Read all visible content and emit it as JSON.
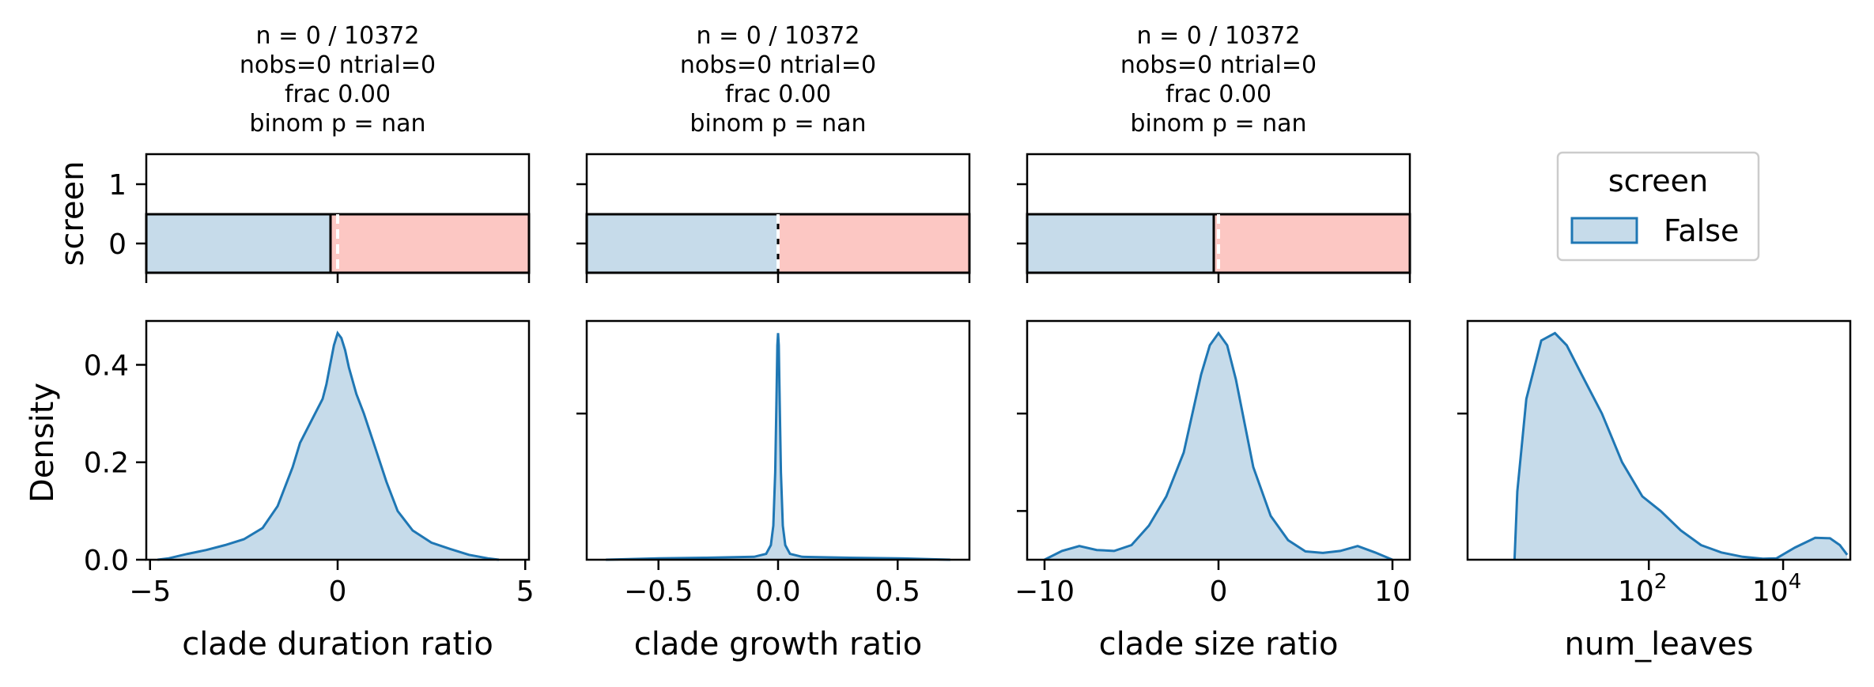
{
  "colors": {
    "kde_line": "#1f77b4",
    "kde_fill": "#c6dbea",
    "bar_observed": "#c6dbea",
    "bar_null": "#fcc7c3",
    "axis": "#000000",
    "null_marker": "#ffffff"
  },
  "figure": {
    "top_row_ylabel": "screen",
    "bottom_row_ylabel": "Density",
    "top_row_yticks": [
      "1",
      "0"
    ],
    "bottom_row_yticks": [
      "0.4",
      "0.2",
      "0.0"
    ]
  },
  "legend": {
    "title": "screen",
    "entries": [
      {
        "label": "False",
        "swatch_icon": "legend-swatch-icon"
      }
    ]
  },
  "chart_data": [
    {
      "type": "bar",
      "panel": "top-1",
      "title_lines": [
        "n = 0 / 10372",
        "nobs=0 ntrial=0",
        "frac 0.00",
        "binom p = nan"
      ],
      "xlim": [
        -5.1,
        5.1
      ],
      "ylabel": "screen",
      "yticks": [
        1,
        0
      ],
      "ylim": [
        -0.5,
        1.5
      ],
      "split_x": -0.2,
      "null_x": 0.0,
      "bar_y_range": [
        -0.5,
        0.5
      ]
    },
    {
      "type": "bar",
      "panel": "top-2",
      "title_lines": [
        "n = 0 / 10372",
        "nobs=0 ntrial=0",
        "frac 0.00",
        "binom p = nan"
      ],
      "xlim": [
        -0.8,
        0.8
      ],
      "ylim": [
        -0.5,
        1.5
      ],
      "split_x": 0.0,
      "null_x": 0.0,
      "bar_y_range": [
        -0.5,
        0.5
      ]
    },
    {
      "type": "bar",
      "panel": "top-3",
      "title_lines": [
        "n = 0 / 10372",
        "nobs=0 ntrial=0",
        "frac 0.00",
        "binom p = nan"
      ],
      "xlim": [
        -11,
        11
      ],
      "ylim": [
        -0.5,
        1.5
      ],
      "split_x": -0.3,
      "null_x": 0.0,
      "bar_y_range": [
        -0.5,
        0.5
      ]
    },
    {
      "type": "area",
      "panel": "bottom-1",
      "xlabel": "clade duration ratio",
      "ylabel": "Density",
      "xlim": [
        -5.1,
        5.1
      ],
      "ylim": [
        0,
        0.49
      ],
      "xticks": [
        -5,
        0,
        5
      ],
      "xtick_labels": [
        "−5",
        "0",
        "5"
      ],
      "yticks": [
        0.0,
        0.2,
        0.4
      ],
      "ytick_labels": [
        "0.0",
        "0.2",
        "0.4"
      ],
      "x": [
        -4.8,
        -4.5,
        -4.0,
        -3.5,
        -3.0,
        -2.5,
        -2.0,
        -1.6,
        -1.2,
        -1.0,
        -0.8,
        -0.6,
        -0.4,
        -0.3,
        -0.2,
        -0.1,
        0.0,
        0.1,
        0.2,
        0.3,
        0.5,
        0.7,
        1.0,
        1.3,
        1.6,
        2.0,
        2.5,
        3.0,
        3.5,
        4.0,
        4.3
      ],
      "y": [
        0.0,
        0.003,
        0.012,
        0.02,
        0.03,
        0.042,
        0.065,
        0.11,
        0.19,
        0.24,
        0.27,
        0.3,
        0.33,
        0.36,
        0.4,
        0.44,
        0.465,
        0.455,
        0.43,
        0.395,
        0.34,
        0.3,
        0.23,
        0.16,
        0.1,
        0.06,
        0.035,
        0.022,
        0.01,
        0.003,
        0.0
      ]
    },
    {
      "type": "area",
      "panel": "bottom-2",
      "xlabel": "clade growth ratio",
      "xlim": [
        -0.8,
        0.8
      ],
      "ylim": [
        0,
        0.49
      ],
      "xticks": [
        -0.5,
        0.0,
        0.5
      ],
      "xtick_labels": [
        "−0.5",
        "0.0",
        "0.5"
      ],
      "yticks": [
        0.3
      ],
      "x": [
        -0.72,
        -0.5,
        -0.3,
        -0.1,
        -0.05,
        -0.03,
        -0.02,
        -0.012,
        -0.007,
        -0.003,
        0.0,
        0.003,
        0.007,
        0.012,
        0.02,
        0.03,
        0.05,
        0.1,
        0.3,
        0.5,
        0.72
      ],
      "y": [
        0.0,
        0.003,
        0.004,
        0.006,
        0.012,
        0.03,
        0.07,
        0.18,
        0.32,
        0.44,
        0.465,
        0.44,
        0.32,
        0.18,
        0.07,
        0.03,
        0.012,
        0.006,
        0.004,
        0.003,
        0.0
      ]
    },
    {
      "type": "area",
      "panel": "bottom-3",
      "xlabel": "clade size ratio",
      "xlim": [
        -11,
        11
      ],
      "ylim": [
        0,
        0.49
      ],
      "xticks": [
        -10,
        0,
        10
      ],
      "xtick_labels": [
        "−10",
        "0",
        "10"
      ],
      "yticks": [
        0.1,
        0.3
      ],
      "x": [
        -10.0,
        -9.0,
        -8.0,
        -7.0,
        -6.0,
        -5.0,
        -4.0,
        -3.0,
        -2.0,
        -1.5,
        -1.0,
        -0.5,
        0.0,
        0.5,
        1.0,
        1.5,
        2.0,
        3.0,
        4.0,
        5.0,
        6.0,
        7.0,
        8.0,
        9.0,
        10.0
      ],
      "y": [
        0.0,
        0.018,
        0.028,
        0.02,
        0.018,
        0.03,
        0.07,
        0.13,
        0.22,
        0.3,
        0.38,
        0.44,
        0.465,
        0.44,
        0.37,
        0.28,
        0.19,
        0.09,
        0.04,
        0.017,
        0.014,
        0.018,
        0.028,
        0.015,
        0.0
      ]
    },
    {
      "type": "area",
      "panel": "bottom-4",
      "xlabel": "num_leaves",
      "xscale": "log",
      "xlim": [
        0.2,
        100000
      ],
      "ylim": [
        0,
        0.49
      ],
      "xticks": [
        100,
        10000
      ],
      "xtick_labels": [
        "10",
        "10"
      ],
      "xtick_exponents": [
        "2",
        "4"
      ],
      "yticks": [
        0.3
      ],
      "x": [
        1.0,
        1.1,
        1.5,
        2.5,
        4.0,
        6.0,
        10.0,
        20.0,
        40.0,
        80.0,
        150.0,
        300.0,
        600.0,
        1200.0,
        2500.0,
        5000.0,
        8000.0,
        15000.0,
        30000.0,
        50000.0,
        70000.0,
        90000.0
      ],
      "y": [
        0.0,
        0.14,
        0.33,
        0.45,
        0.465,
        0.44,
        0.38,
        0.3,
        0.2,
        0.13,
        0.1,
        0.06,
        0.03,
        0.015,
        0.006,
        0.002,
        0.003,
        0.025,
        0.045,
        0.044,
        0.03,
        0.01
      ]
    }
  ]
}
